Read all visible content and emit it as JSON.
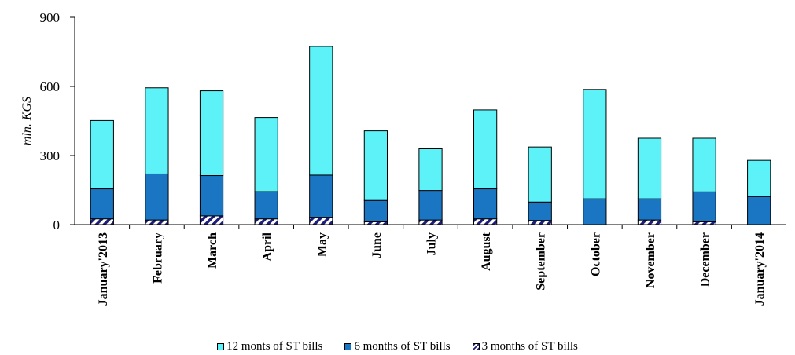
{
  "chart_data": {
    "type": "bar",
    "stacked": true,
    "ylabel": "mln. KGS",
    "xlabel": "",
    "ylim": [
      0,
      900
    ],
    "yticks": [
      0,
      300,
      600,
      900
    ],
    "grid": false,
    "legend_position": "bottom",
    "categories": [
      "January'2013",
      "February",
      "March",
      "April",
      "May",
      "June",
      "July",
      "August",
      "September",
      "October",
      "November",
      "December",
      "January'2014"
    ],
    "series": [
      {
        "name": "3 months of ST bills",
        "color": "#1f1f7a",
        "pattern": "hatched",
        "values": [
          25,
          20,
          38,
          25,
          32,
          12,
          20,
          25,
          18,
          0,
          20,
          12,
          0
        ]
      },
      {
        "name": "6 months of ST bills",
        "color": "#1a75c2",
        "values": [
          130,
          200,
          175,
          118,
          183,
          93,
          128,
          130,
          80,
          112,
          92,
          130,
          122
        ]
      },
      {
        "name": "12 monts of ST bills",
        "color": "#5cf2f7",
        "values": [
          297,
          374,
          368,
          322,
          559,
          302,
          181,
          343,
          239,
          475,
          263,
          233,
          157
        ]
      }
    ],
    "legend_order": [
      "12 monts of ST bills",
      "6 months of ST bills",
      "3 months of ST bills"
    ]
  }
}
